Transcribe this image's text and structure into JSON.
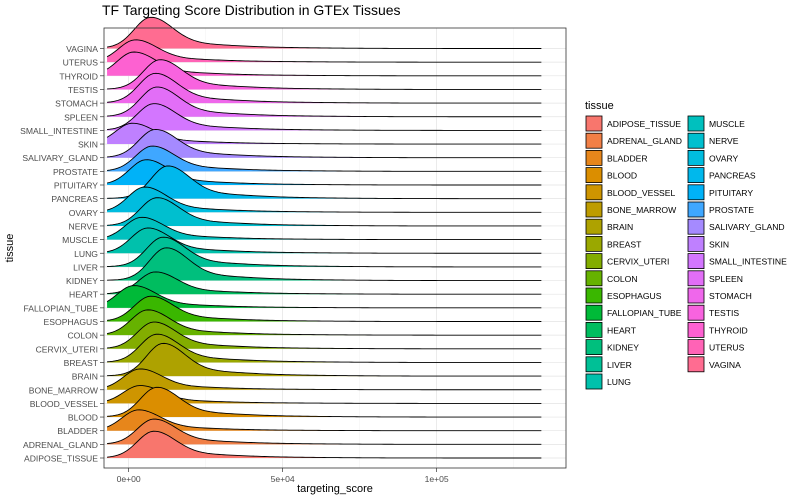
{
  "chart_data": {
    "type": "ridgeline",
    "title": "TF Targeting Score Distribution in GTEx Tissues",
    "xlabel": "targeting_score",
    "ylabel": "tissue",
    "xlim": [
      -8000,
      142000
    ],
    "x_ticks": [
      {
        "value": 0,
        "label": "0e+00"
      },
      {
        "value": 50000,
        "label": "5e+04"
      },
      {
        "value": 100000,
        "label": "1e+05"
      }
    ],
    "x_range_curves": [
      -7000,
      134000
    ],
    "grid": true,
    "legend": {
      "title": "tissue",
      "placement": "right",
      "columns": 2
    },
    "series": [
      {
        "name": "ADIPOSE_TISSUE",
        "color": "#F8766D",
        "peak": 8000,
        "height": 0.9
      },
      {
        "name": "ADRENAL_GLAND",
        "color": "#F17F46",
        "peak": 8000,
        "height": 0.85
      },
      {
        "name": "BLADDER",
        "color": "#E7861B",
        "peak": 3000,
        "height": 0.7
      },
      {
        "name": "BLOOD",
        "color": "#DB8E00",
        "peak": 9000,
        "height": 1.0
      },
      {
        "name": "BLOOD_VESSEL",
        "color": "#CE9500",
        "peak": 3500,
        "height": 0.6
      },
      {
        "name": "BONE_MARROW",
        "color": "#BE9C00",
        "peak": 3500,
        "height": 0.7
      },
      {
        "name": "BRAIN",
        "color": "#AEA200",
        "peak": 11000,
        "height": 1.1
      },
      {
        "name": "BREAST",
        "color": "#9AA800",
        "peak": 9000,
        "height": 0.95
      },
      {
        "name": "CERVIX_UTERI",
        "color": "#83AD00",
        "peak": 8000,
        "height": 0.9
      },
      {
        "name": "COLON",
        "color": "#66B200",
        "peak": 6000,
        "height": 0.85
      },
      {
        "name": "ESOPHAGUS",
        "color": "#3AB700",
        "peak": 7000,
        "height": 0.85
      },
      {
        "name": "FALLOPIAN_TUBE",
        "color": "#00BA38",
        "peak": 1500,
        "height": 0.75
      },
      {
        "name": "HEART",
        "color": "#00BD5F",
        "peak": 8500,
        "height": 0.75
      },
      {
        "name": "KIDNEY",
        "color": "#00BF7D",
        "peak": 12000,
        "height": 1.1
      },
      {
        "name": "LIVER",
        "color": "#00C096",
        "peak": 11000,
        "height": 1.0
      },
      {
        "name": "LUNG",
        "color": "#00C1AC",
        "peak": 6000,
        "height": 0.85
      },
      {
        "name": "MUSCLE",
        "color": "#00C0BE",
        "peak": 4000,
        "height": 0.75
      },
      {
        "name": "NERVE",
        "color": "#00BFCF",
        "peak": 9000,
        "height": 0.95
      },
      {
        "name": "OVARY",
        "color": "#00BCDF",
        "peak": 5000,
        "height": 0.85
      },
      {
        "name": "PANCREAS",
        "color": "#00B8EC",
        "peak": 12500,
        "height": 1.1
      },
      {
        "name": "PITUITARY",
        "color": "#00B2F8",
        "peak": 5500,
        "height": 0.85
      },
      {
        "name": "PROSTATE",
        "color": "#3FA7FF",
        "peak": 7500,
        "height": 0.85
      },
      {
        "name": "SALIVARY_GLAND",
        "color": "#A58AFF",
        "peak": 8500,
        "height": 0.95
      },
      {
        "name": "SKIN",
        "color": "#BF80FF",
        "peak": 1000,
        "height": 0.7
      },
      {
        "name": "SMALL_INTESTINE",
        "color": "#D376FF",
        "peak": 8000,
        "height": 0.9
      },
      {
        "name": "SPLEEN",
        "color": "#E26EF7",
        "peak": 9000,
        "height": 1.0
      },
      {
        "name": "STOMACH",
        "color": "#EF67EB",
        "peak": 8500,
        "height": 1.0
      },
      {
        "name": "TESTIS",
        "color": "#F863DF",
        "peak": 10000,
        "height": 1.0
      },
      {
        "name": "THYROID",
        "color": "#FD61D1",
        "peak": 1500,
        "height": 0.8
      },
      {
        "name": "UTERUS",
        "color": "#FF63B6",
        "peak": 2000,
        "height": 0.75
      },
      {
        "name": "VAGINA",
        "color": "#FF6C91",
        "peak": 7000,
        "height": 1.05
      }
    ]
  }
}
